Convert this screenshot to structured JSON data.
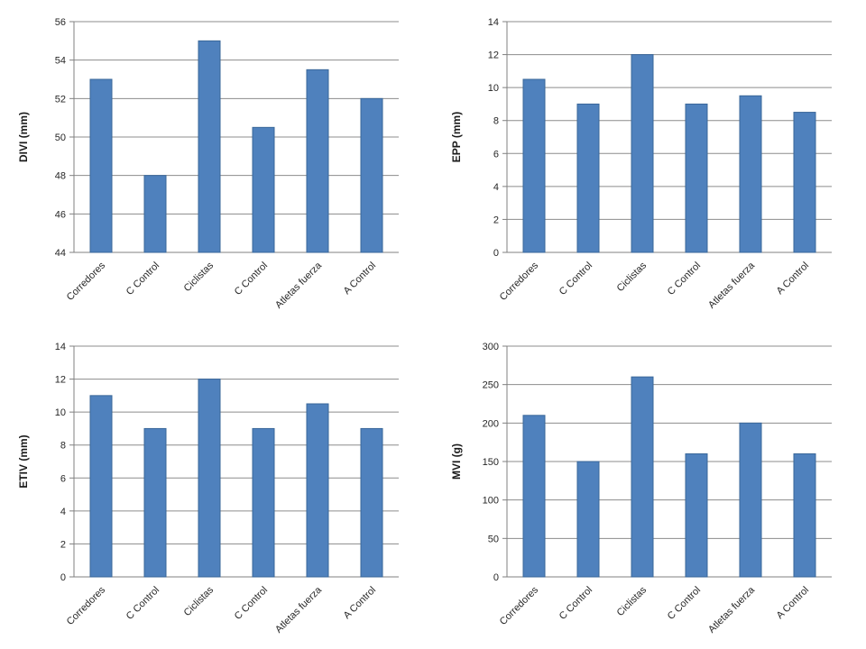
{
  "page": {
    "background": "#ffffff"
  },
  "colors": {
    "bar_fill": "#4F81BD",
    "bar_border": "#3A6799",
    "gridline": "#8C8C8C",
    "axis_line": "#808080",
    "tick_text": "#262626",
    "category_text": "#262626",
    "axis_title_text": "#1a1a1a"
  },
  "chart_data": [
    {
      "id": "divi",
      "type": "bar",
      "title": "",
      "xlabel": "",
      "ylabel": "DIVI (mm)",
      "categories": [
        "Corredores",
        "C Control",
        "Ciclistas",
        "C Control",
        "Atletas fuerza",
        "A Control"
      ],
      "values": [
        53,
        48,
        55,
        50.5,
        53.5,
        52
      ],
      "ylim": [
        44,
        56
      ],
      "ytick_step": 2,
      "grid": true,
      "legend": "none"
    },
    {
      "id": "epp",
      "type": "bar",
      "title": "",
      "xlabel": "",
      "ylabel": "EPP (mm)",
      "categories": [
        "Corredores",
        "C Control",
        "Ciclistas",
        "C Control",
        "Atletas fuerza",
        "A Control"
      ],
      "values": [
        10.5,
        9,
        12,
        9,
        9.5,
        8.5
      ],
      "ylim": [
        0,
        14
      ],
      "ytick_step": 2,
      "grid": true,
      "legend": "none"
    },
    {
      "id": "etiv",
      "type": "bar",
      "title": "",
      "xlabel": "",
      "ylabel": "ETIV (mm)",
      "categories": [
        "Corredores",
        "C Control",
        "Ciclistas",
        "C Control",
        "Atletas fuerza",
        "A Control"
      ],
      "values": [
        11,
        9,
        12,
        9,
        10.5,
        9
      ],
      "ylim": [
        0,
        14
      ],
      "ytick_step": 2,
      "grid": true,
      "legend": "none"
    },
    {
      "id": "mvi",
      "type": "bar",
      "title": "",
      "xlabel": "",
      "ylabel": "MVI (g)",
      "categories": [
        "Corredores",
        "C Control",
        "Ciclistas",
        "C Control",
        "Atletas fuerza",
        "A Control"
      ],
      "values": [
        210,
        150,
        260,
        160,
        200,
        160
      ],
      "ylim": [
        0,
        300
      ],
      "ytick_step": 50,
      "grid": true,
      "legend": "none"
    }
  ]
}
